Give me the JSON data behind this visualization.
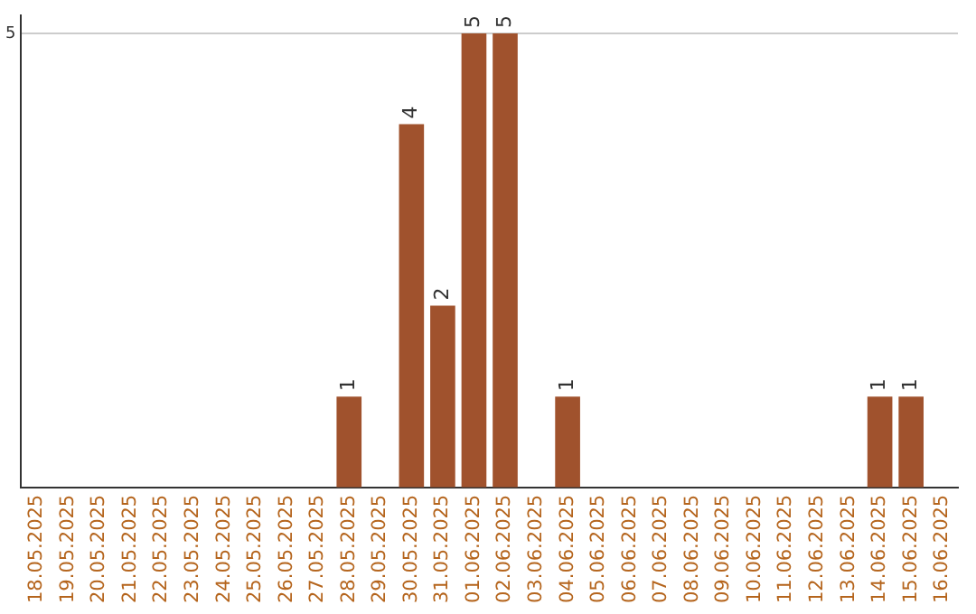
{
  "chart_data": {
    "type": "bar",
    "categories": [
      "18.05.2025",
      "19.05.2025",
      "20.05.2025",
      "21.05.2025",
      "22.05.2025",
      "23.05.2025",
      "24.05.2025",
      "25.05.2025",
      "26.05.2025",
      "27.05.2025",
      "28.05.2025",
      "29.05.2025",
      "30.05.2025",
      "31.05.2025",
      "01.06.2025",
      "02.06.2025",
      "03.06.2025",
      "04.06.2025",
      "05.06.2025",
      "06.06.2025",
      "07.06.2025",
      "08.06.2025",
      "09.06.2025",
      "10.06.2025",
      "11.06.2025",
      "12.06.2025",
      "13.06.2025",
      "14.06.2025",
      "15.06.2025",
      "16.06.2025"
    ],
    "values": [
      0,
      0,
      0,
      0,
      0,
      0,
      0,
      0,
      0,
      0,
      1,
      0,
      4,
      2,
      5,
      5,
      0,
      1,
      0,
      0,
      0,
      0,
      0,
      0,
      0,
      0,
      0,
      1,
      1,
      0
    ],
    "value_labels": [
      null,
      null,
      null,
      null,
      null,
      null,
      null,
      null,
      null,
      null,
      "1",
      null,
      "4",
      "2",
      "5",
      "5",
      null,
      "1",
      null,
      null,
      null,
      null,
      null,
      null,
      null,
      null,
      null,
      "1",
      "1",
      null
    ],
    "color": "#a0522d",
    "ylim": [
      0,
      5.2
    ],
    "yticks": [
      5
    ],
    "grid": "y",
    "legend": false
  }
}
